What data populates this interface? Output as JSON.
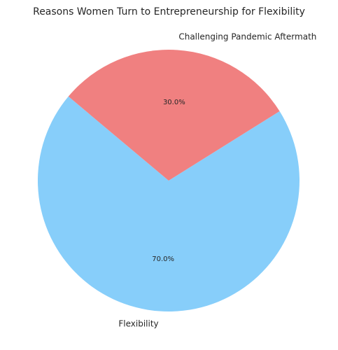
{
  "chart_data": {
    "type": "pie",
    "title": "Reasons Women Turn to Entrepreneurship for Flexibility",
    "slices": [
      {
        "label": "Flexibility",
        "value": 70.0,
        "pct_label": "70.0%",
        "color": "#87CEFA"
      },
      {
        "label": "Challenging Pandemic Aftermath",
        "value": 30.0,
        "pct_label": "30.0%",
        "color": "#F08080"
      }
    ],
    "start_angle_deg": 140,
    "direction": "counterclockwise",
    "autopct_format": "%1.1f%%"
  }
}
